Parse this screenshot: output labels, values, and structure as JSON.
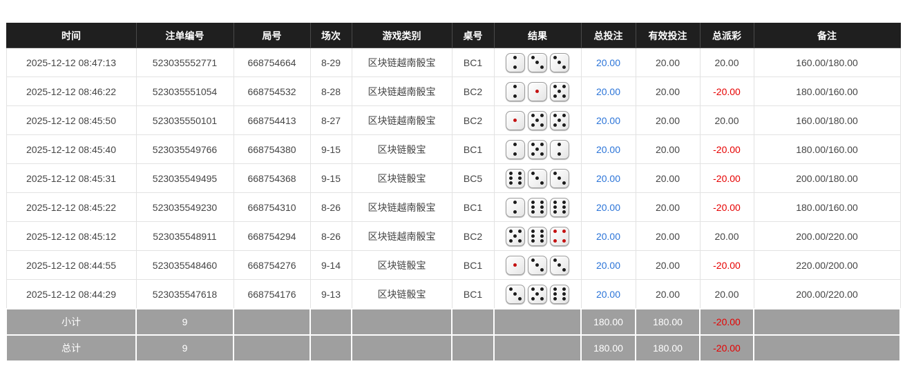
{
  "colors": {
    "header_bg": "#1f1f1f",
    "footer_bg": "#9f9f9f",
    "link_blue": "#2b74d8",
    "negative_red": "#e60000",
    "pip_black": "#1c1c1c",
    "pip_red": "#c41111"
  },
  "table": {
    "columns": [
      {
        "key": "time",
        "label": "时间"
      },
      {
        "key": "bet_id",
        "label": "注单编号"
      },
      {
        "key": "round_id",
        "label": "局号"
      },
      {
        "key": "session",
        "label": "场次"
      },
      {
        "key": "game_type",
        "label": "游戏类别"
      },
      {
        "key": "table_no",
        "label": "桌号"
      },
      {
        "key": "result",
        "label": "结果"
      },
      {
        "key": "total_bet",
        "label": "总投注"
      },
      {
        "key": "valid_bet",
        "label": "有效投注"
      },
      {
        "key": "payout",
        "label": "总派彩"
      },
      {
        "key": "remark",
        "label": "备注"
      }
    ],
    "rows": [
      {
        "time": "2025-12-12 08:47:13",
        "bet_id": "523035552771",
        "round_id": "668754664",
        "session": "8-29",
        "game_type": "区块链越南骰宝",
        "table_no": "BC1",
        "result": [
          2,
          3,
          3
        ],
        "total_bet": "20.00",
        "valid_bet": "20.00",
        "payout": "20.00",
        "remark": "160.00/180.00"
      },
      {
        "time": "2025-12-12 08:46:22",
        "bet_id": "523035551054",
        "round_id": "668754532",
        "session": "8-28",
        "game_type": "区块链越南骰宝",
        "table_no": "BC2",
        "result": [
          2,
          1,
          5
        ],
        "total_bet": "20.00",
        "valid_bet": "20.00",
        "payout": "-20.00",
        "remark": "180.00/160.00"
      },
      {
        "time": "2025-12-12 08:45:50",
        "bet_id": "523035550101",
        "round_id": "668754413",
        "session": "8-27",
        "game_type": "区块链越南骰宝",
        "table_no": "BC2",
        "result": [
          1,
          5,
          5
        ],
        "total_bet": "20.00",
        "valid_bet": "20.00",
        "payout": "20.00",
        "remark": "160.00/180.00"
      },
      {
        "time": "2025-12-12 08:45:40",
        "bet_id": "523035549766",
        "round_id": "668754380",
        "session": "9-15",
        "game_type": "区块链骰宝",
        "table_no": "BC1",
        "result": [
          2,
          5,
          2
        ],
        "total_bet": "20.00",
        "valid_bet": "20.00",
        "payout": "-20.00",
        "remark": "180.00/160.00"
      },
      {
        "time": "2025-12-12 08:45:31",
        "bet_id": "523035549495",
        "round_id": "668754368",
        "session": "9-15",
        "game_type": "区块链骰宝",
        "table_no": "BC5",
        "result": [
          6,
          3,
          3
        ],
        "total_bet": "20.00",
        "valid_bet": "20.00",
        "payout": "-20.00",
        "remark": "200.00/180.00"
      },
      {
        "time": "2025-12-12 08:45:22",
        "bet_id": "523035549230",
        "round_id": "668754310",
        "session": "8-26",
        "game_type": "区块链越南骰宝",
        "table_no": "BC1",
        "result": [
          2,
          6,
          6
        ],
        "total_bet": "20.00",
        "valid_bet": "20.00",
        "payout": "-20.00",
        "remark": "180.00/160.00"
      },
      {
        "time": "2025-12-12 08:45:12",
        "bet_id": "523035548911",
        "round_id": "668754294",
        "session": "8-26",
        "game_type": "区块链越南骰宝",
        "table_no": "BC2",
        "result": [
          5,
          6,
          4
        ],
        "total_bet": "20.00",
        "valid_bet": "20.00",
        "payout": "20.00",
        "remark": "200.00/220.00"
      },
      {
        "time": "2025-12-12 08:44:55",
        "bet_id": "523035548460",
        "round_id": "668754276",
        "session": "9-14",
        "game_type": "区块链骰宝",
        "table_no": "BC1",
        "result": [
          1,
          3,
          3
        ],
        "total_bet": "20.00",
        "valid_bet": "20.00",
        "payout": "-20.00",
        "remark": "220.00/200.00"
      },
      {
        "time": "2025-12-12 08:44:29",
        "bet_id": "523035547618",
        "round_id": "668754176",
        "session": "9-13",
        "game_type": "区块链骰宝",
        "table_no": "BC1",
        "result": [
          3,
          5,
          6
        ],
        "total_bet": "20.00",
        "valid_bet": "20.00",
        "payout": "20.00",
        "remark": "200.00/220.00"
      }
    ],
    "summary_rows": [
      {
        "name": "subtotal-row",
        "cells": {
          "time": "小计",
          "bet_id": "9",
          "round_id": "",
          "session": "",
          "game_type": "",
          "table_no": "",
          "result": "",
          "total_bet": "180.00",
          "valid_bet": "180.00",
          "payout": "-20.00",
          "remark": ""
        }
      },
      {
        "name": "grand-total-row",
        "cells": {
          "time": "总计",
          "bet_id": "9",
          "round_id": "",
          "session": "",
          "game_type": "",
          "table_no": "",
          "result": "",
          "total_bet": "180.00",
          "valid_bet": "180.00",
          "payout": "-20.00",
          "remark": ""
        }
      }
    ]
  }
}
